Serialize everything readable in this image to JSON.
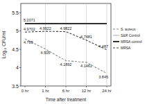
{
  "chart_data": {
    "type": "line",
    "x_label": "Time after treatment",
    "y_label": "Log₁₀ CFU/ml",
    "categories": [
      "0 hr",
      "1 hr",
      "6 hr",
      "12 hr",
      "24 hr"
    ],
    "series": [
      {
        "name": "S. aureus",
        "color": "#8a8a8a",
        "line_style": "dashed",
        "data_labels": true,
        "values": [
          4.785,
          4.505,
          4.1892,
          4.1461,
          3.845
        ]
      },
      {
        "name": "S&R Control",
        "color": "#b0b0b0",
        "line_style": "solid",
        "data_labels": true,
        "values": [
          5.2071,
          5.2071,
          5.2071,
          5.2071,
          5.2071
        ],
        "value_labels": [
          "5.2071",
          null,
          null,
          null,
          null
        ]
      },
      {
        "name": "MRSA control",
        "color": "#1a1a1a",
        "line_style": "solid",
        "values": [
          5.2,
          5.2,
          5.2,
          5.2,
          5.2
        ]
      },
      {
        "name": "MRSA",
        "color": "#404040",
        "line_style": "dashed",
        "data_labels": true,
        "values": [
          4.9702,
          4.9922,
          4.9822,
          4.7481,
          4.487
        ]
      }
    ],
    "ylim": [
      3.5,
      5.75
    ],
    "yticks": [
      3.5,
      4,
      4.5,
      5,
      5.5
    ],
    "grid": "x",
    "legend": "right"
  }
}
